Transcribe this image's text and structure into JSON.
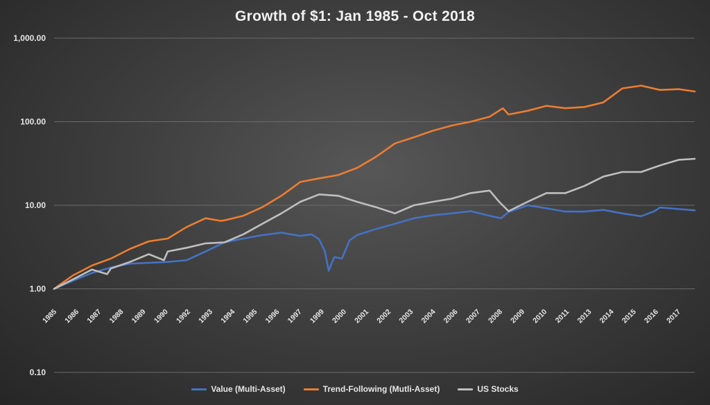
{
  "chart_data": {
    "type": "line",
    "title": "Growth of $1: Jan 1985 - Oct 2018",
    "y_scale": "log",
    "ylim": [
      0.1,
      1000
    ],
    "y_ticks": [
      "0.10",
      "1.00",
      "10.00",
      "100.00",
      "1,000.00"
    ],
    "x_range": [
      1985.0,
      2018.83
    ],
    "x_tick_labels": [
      "1985",
      "1986",
      "1987",
      "1988",
      "1989",
      "1990",
      "1992",
      "1993",
      "1994",
      "1995",
      "1996",
      "1997",
      "1999",
      "2000",
      "2001",
      "2002",
      "2003",
      "2004",
      "2006",
      "2007",
      "2008",
      "2009",
      "2010",
      "2011",
      "2013",
      "2014",
      "2015",
      "2016",
      "2017"
    ],
    "grid": "horizontal",
    "legend_position": "bottom",
    "series": [
      {
        "name": "Value (Multi-Asset)",
        "color": "#4472c4",
        "points": [
          [
            1985.0,
            1.0
          ],
          [
            1986.0,
            1.25
          ],
          [
            1987.0,
            1.55
          ],
          [
            1988.0,
            1.8
          ],
          [
            1989.0,
            2.0
          ],
          [
            1990.0,
            2.05
          ],
          [
            1991.0,
            2.1
          ],
          [
            1992.0,
            2.2
          ],
          [
            1993.0,
            2.8
          ],
          [
            1994.0,
            3.6
          ],
          [
            1995.0,
            4.0
          ],
          [
            1996.0,
            4.4
          ],
          [
            1997.0,
            4.7
          ],
          [
            1998.0,
            4.3
          ],
          [
            1998.6,
            4.5
          ],
          [
            1999.0,
            3.9
          ],
          [
            1999.3,
            2.8
          ],
          [
            1999.5,
            1.65
          ],
          [
            1999.8,
            2.4
          ],
          [
            2000.2,
            2.3
          ],
          [
            2000.6,
            3.8
          ],
          [
            2001.0,
            4.4
          ],
          [
            2002.0,
            5.2
          ],
          [
            2003.0,
            6.0
          ],
          [
            2004.0,
            7.0
          ],
          [
            2005.0,
            7.6
          ],
          [
            2006.0,
            8.0
          ],
          [
            2007.0,
            8.5
          ],
          [
            2008.0,
            7.5
          ],
          [
            2008.6,
            7.0
          ],
          [
            2009.0,
            8.3
          ],
          [
            2010.0,
            10.0
          ],
          [
            2011.0,
            9.2
          ],
          [
            2012.0,
            8.4
          ],
          [
            2013.0,
            8.4
          ],
          [
            2014.0,
            8.8
          ],
          [
            2015.0,
            8.0
          ],
          [
            2016.0,
            7.4
          ],
          [
            2016.7,
            8.5
          ],
          [
            2017.0,
            9.4
          ],
          [
            2018.0,
            9.0
          ],
          [
            2018.83,
            8.7
          ]
        ]
      },
      {
        "name": "Trend-Following (Mutli-Asset)",
        "color": "#ed7d31",
        "points": [
          [
            1985.0,
            1.0
          ],
          [
            1986.0,
            1.45
          ],
          [
            1987.0,
            1.9
          ],
          [
            1988.0,
            2.3
          ],
          [
            1989.0,
            3.0
          ],
          [
            1990.0,
            3.7
          ],
          [
            1991.0,
            4.0
          ],
          [
            1992.0,
            5.5
          ],
          [
            1993.0,
            7.0
          ],
          [
            1993.8,
            6.5
          ],
          [
            1994.0,
            6.6
          ],
          [
            1995.0,
            7.5
          ],
          [
            1996.0,
            9.5
          ],
          [
            1997.0,
            13.0
          ],
          [
            1998.0,
            19.0
          ],
          [
            1999.0,
            21.0
          ],
          [
            2000.0,
            23.0
          ],
          [
            2001.0,
            28.0
          ],
          [
            2002.0,
            38.0
          ],
          [
            2003.0,
            55.0
          ],
          [
            2004.0,
            65.0
          ],
          [
            2005.0,
            78.0
          ],
          [
            2006.0,
            90.0
          ],
          [
            2007.0,
            100.0
          ],
          [
            2008.0,
            115.0
          ],
          [
            2008.7,
            145.0
          ],
          [
            2009.0,
            122.0
          ],
          [
            2010.0,
            135.0
          ],
          [
            2011.0,
            155.0
          ],
          [
            2012.0,
            145.0
          ],
          [
            2013.0,
            150.0
          ],
          [
            2014.0,
            170.0
          ],
          [
            2015.0,
            250.0
          ],
          [
            2016.0,
            270.0
          ],
          [
            2017.0,
            240.0
          ],
          [
            2018.0,
            245.0
          ],
          [
            2018.83,
            230.0
          ]
        ]
      },
      {
        "name": "US Stocks",
        "color": "#bfbfbf",
        "points": [
          [
            1985.0,
            1.0
          ],
          [
            1986.0,
            1.3
          ],
          [
            1987.0,
            1.7
          ],
          [
            1987.8,
            1.5
          ],
          [
            1988.0,
            1.75
          ],
          [
            1989.0,
            2.1
          ],
          [
            1990.0,
            2.6
          ],
          [
            1990.8,
            2.2
          ],
          [
            1991.0,
            2.8
          ],
          [
            1992.0,
            3.1
          ],
          [
            1993.0,
            3.5
          ],
          [
            1994.0,
            3.6
          ],
          [
            1995.0,
            4.5
          ],
          [
            1996.0,
            6.0
          ],
          [
            1997.0,
            8.0
          ],
          [
            1998.0,
            11.0
          ],
          [
            1999.0,
            13.5
          ],
          [
            2000.0,
            13.0
          ],
          [
            2001.0,
            11.0
          ],
          [
            2002.0,
            9.5
          ],
          [
            2003.0,
            8.0
          ],
          [
            2004.0,
            10.0
          ],
          [
            2005.0,
            11.0
          ],
          [
            2006.0,
            12.0
          ],
          [
            2007.0,
            14.0
          ],
          [
            2008.0,
            15.0
          ],
          [
            2008.5,
            11.0
          ],
          [
            2009.0,
            8.5
          ],
          [
            2010.0,
            11.0
          ],
          [
            2011.0,
            14.0
          ],
          [
            2012.0,
            14.0
          ],
          [
            2013.0,
            17.0
          ],
          [
            2014.0,
            22.0
          ],
          [
            2015.0,
            25.0
          ],
          [
            2016.0,
            25.0
          ],
          [
            2017.0,
            30.0
          ],
          [
            2018.0,
            35.0
          ],
          [
            2018.83,
            36.0
          ]
        ]
      }
    ]
  }
}
